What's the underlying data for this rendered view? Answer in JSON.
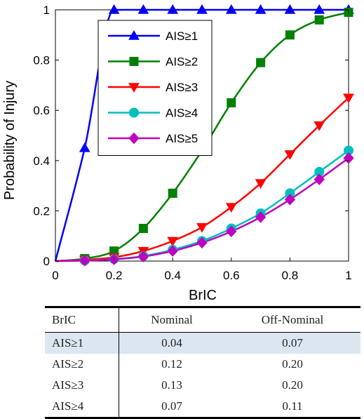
{
  "chart_data": [
    {
      "type": "line",
      "title": "",
      "xlabel": "BrIC",
      "ylabel": "Probability of Injury",
      "xlim": [
        0,
        1
      ],
      "ylim": [
        0,
        1
      ],
      "xticks": [
        "0",
        "0.2",
        "0.4",
        "0.6",
        "0.8",
        "1"
      ],
      "yticks": [
        "0",
        "0.2",
        "0.4",
        "0.6",
        "0.8",
        "1"
      ],
      "grid": false,
      "legend_position": "top-left",
      "x": [
        0.1,
        0.2,
        0.3,
        0.4,
        0.5,
        0.6,
        0.7,
        0.8,
        0.9,
        1.0
      ],
      "series": [
        {
          "name": "AIS≥1",
          "color": "#0000ff",
          "marker": "triangle-up",
          "values": [
            0.45,
            1.0,
            1.0,
            1.0,
            1.0,
            1.0,
            1.0,
            1.0,
            1.0,
            1.0
          ]
        },
        {
          "name": "AIS≥2",
          "color": "#008000",
          "marker": "square",
          "values": [
            0.01,
            0.04,
            0.13,
            0.27,
            0.44,
            0.63,
            0.79,
            0.9,
            0.96,
            0.99
          ]
        },
        {
          "name": "AIS≥3",
          "color": "#ff0000",
          "marker": "triangle-down",
          "values": [
            0.005,
            0.015,
            0.04,
            0.08,
            0.135,
            0.215,
            0.31,
            0.425,
            0.54,
            0.65
          ]
        },
        {
          "name": "AIS≥4",
          "color": "#00bfbf",
          "marker": "circle",
          "values": [
            0.002,
            0.008,
            0.02,
            0.045,
            0.08,
            0.13,
            0.19,
            0.27,
            0.355,
            0.44
          ]
        },
        {
          "name": "AIS≥5",
          "color": "#bf00bf",
          "marker": "diamond",
          "values": [
            0.002,
            0.007,
            0.018,
            0.04,
            0.073,
            0.118,
            0.175,
            0.245,
            0.325,
            0.41
          ]
        }
      ]
    },
    {
      "type": "table",
      "columns": [
        "BrIC",
        "Nominal",
        "Off-Nominal"
      ],
      "rows": [
        [
          "AIS≥1",
          "0.04",
          "0.07"
        ],
        [
          "AIS≥2",
          "0.12",
          "0.20"
        ],
        [
          "AIS≥3",
          "0.13",
          "0.20"
        ],
        [
          "AIS≥4",
          "0.07",
          "0.11"
        ]
      ]
    }
  ]
}
